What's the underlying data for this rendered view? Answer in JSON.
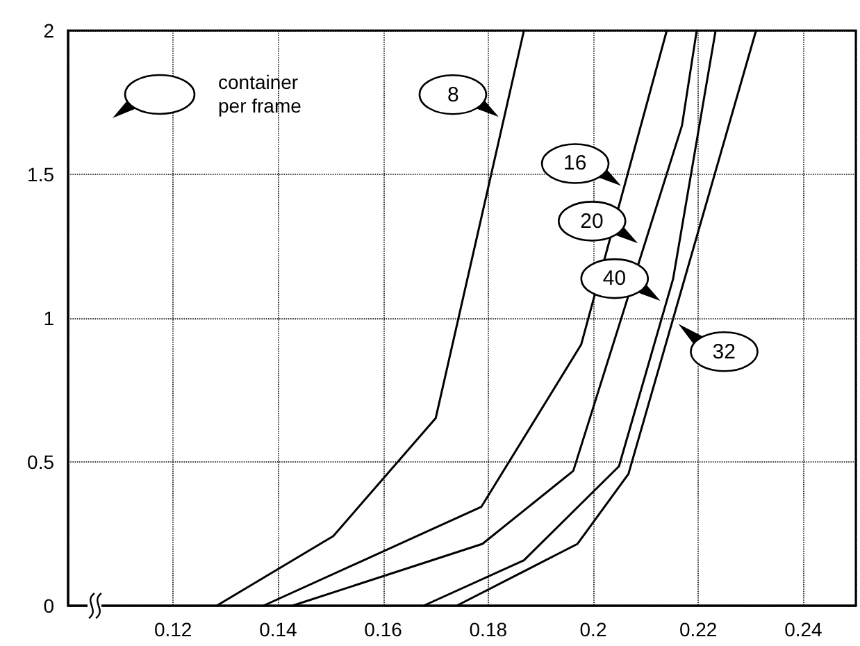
{
  "chart_data": {
    "type": "line",
    "legend_title": "container per frame",
    "xlim": [
      0.1,
      0.25
    ],
    "xticks": [
      0.12,
      0.14,
      0.16,
      0.18,
      0.2,
      0.22,
      0.24
    ],
    "ylim": [
      0,
      2
    ],
    "yticks": [
      0,
      0.5,
      1,
      1.5,
      2
    ],
    "grid": true,
    "marker": "none",
    "series": [
      {
        "color": "#000000",
        "x": [
          0.1283,
          0.1505,
          0.17,
          0.1868
        ],
        "values": [
          0,
          0.242,
          0.652,
          2
        ]
      },
      {
        "color": "#000000",
        "x": [
          0.1372,
          0.1787,
          0.1977,
          0.214
        ],
        "values": [
          0,
          0.344,
          0.908,
          2
        ]
      },
      {
        "color": "#000000",
        "x": [
          0.1427,
          0.1789,
          0.1962,
          0.2169,
          0.2197
        ],
        "values": [
          0,
          0.215,
          0.469,
          1.67,
          2
        ]
      },
      {
        "color": "#000000",
        "x": [
          0.1677,
          0.1868,
          0.2049,
          0.2152,
          0.2233
        ],
        "values": [
          0,
          0.158,
          0.485,
          1.136,
          2
        ]
      },
      {
        "color": "#000000",
        "x": [
          0.174,
          0.197,
          0.2067,
          0.231
        ],
        "values": [
          0,
          0.215,
          0.458,
          2
        ]
      }
    ],
    "annotations": [
      {
        "text": "8",
        "x": 0.182,
        "y": 1.7
      },
      {
        "text": "16",
        "x": 0.2053,
        "y": 1.46
      },
      {
        "text": "20",
        "x": 0.2085,
        "y": 1.26
      },
      {
        "text": "40",
        "x": 0.2128,
        "y": 1.06
      },
      {
        "text": "32",
        "x": 0.2162,
        "y": 0.98
      }
    ]
  }
}
